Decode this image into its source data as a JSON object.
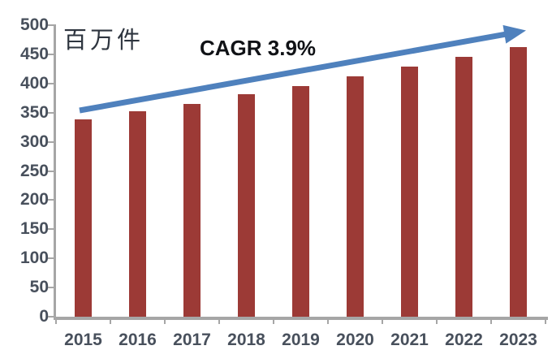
{
  "chart_data": {
    "type": "bar",
    "title": "",
    "unit_label": "百万件",
    "annotation": "CAGR 3.9%",
    "categories": [
      "2015",
      "2016",
      "2017",
      "2018",
      "2019",
      "2020",
      "2021",
      "2022",
      "2023"
    ],
    "values": [
      338,
      352,
      365,
      381,
      396,
      412,
      429,
      446,
      462
    ],
    "xlabel": "",
    "ylabel": "百万件",
    "ylim": [
      0,
      500
    ],
    "yticks": [
      0,
      50,
      100,
      150,
      200,
      250,
      300,
      350,
      400,
      450,
      500
    ],
    "grid": false,
    "legend_position": "none",
    "annotation_trend": "upward arrow from first bar top to last bar top"
  },
  "colors": {
    "bar": "#9c3a36",
    "arrow": "#4f81bd",
    "axis": "#a6a6a6",
    "tick_label": "#48505c",
    "annotation_text": "#101216",
    "unit_text": "#2e353f",
    "background": "#ffffff"
  }
}
